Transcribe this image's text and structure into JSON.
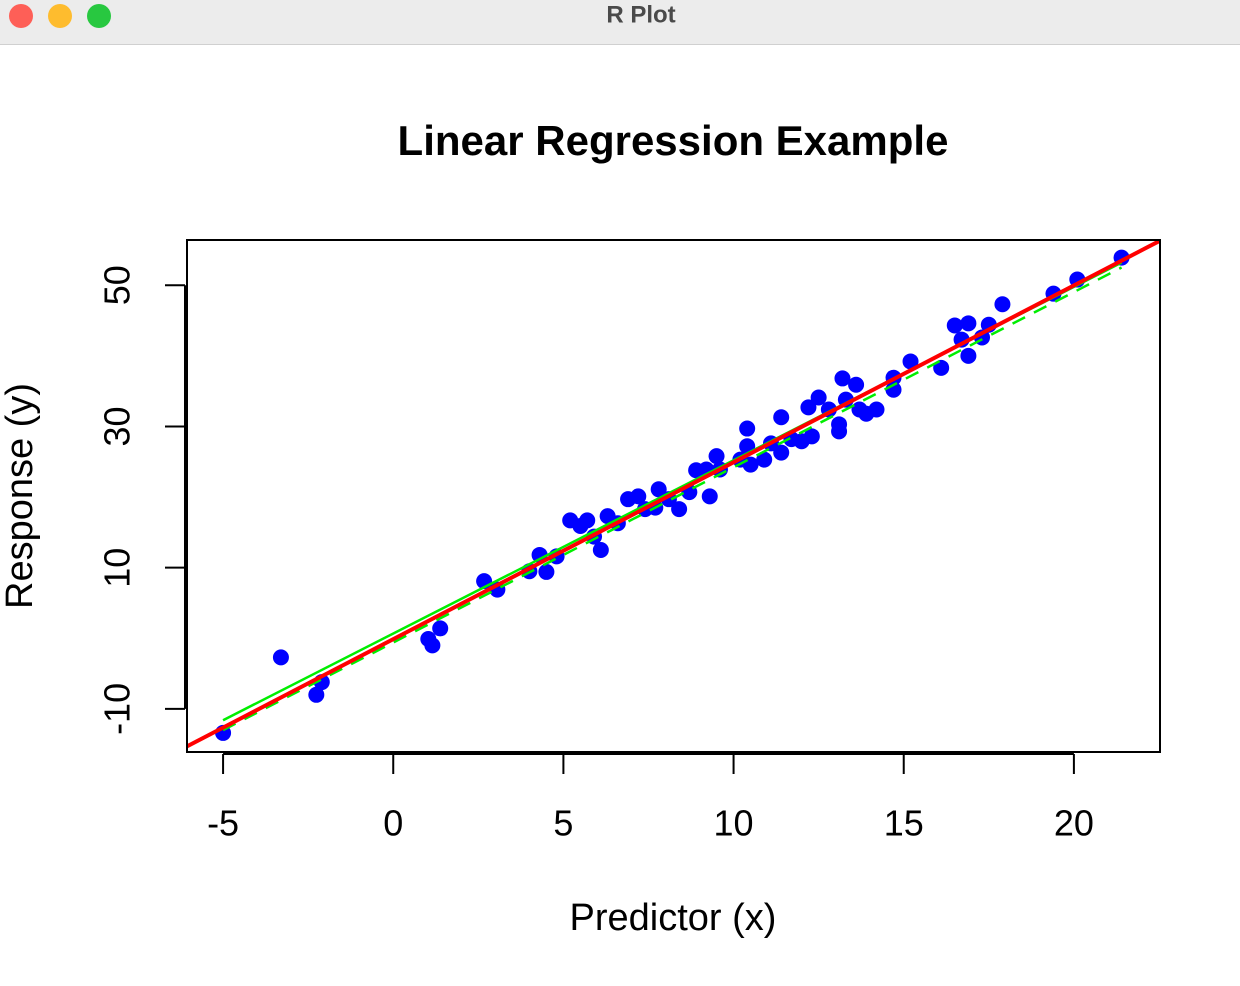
{
  "window": {
    "title": "R Plot"
  },
  "chart_data": {
    "type": "scatter",
    "title": "Linear Regression Example",
    "x_label": "Predictor (x)",
    "y_label": "Response (y)",
    "color": "#0000ff",
    "x": [
      -5.0,
      -3.3,
      -2.26,
      -2.1,
      1.03,
      1.15,
      1.38,
      2.67,
      3.06,
      4.0,
      4.3,
      4.5,
      4.8,
      5.2,
      5.5,
      5.7,
      5.9,
      6.1,
      6.3,
      6.6,
      6.9,
      7.2,
      7.4,
      7.7,
      7.8,
      8.1,
      8.4,
      8.7,
      8.9,
      9.2,
      9.3,
      9.5,
      9.6,
      10.2,
      10.4,
      10.4,
      10.5,
      10.9,
      11.1,
      11.4,
      11.4,
      11.7,
      12.0,
      12.3,
      12.2,
      12.5,
      12.8,
      13.1,
      13.1,
      13.2,
      13.3,
      13.6,
      13.7,
      13.9,
      14.2,
      14.7,
      14.7,
      15.2,
      16.1,
      16.5,
      16.7,
      16.9,
      16.9,
      17.3,
      17.5,
      17.9,
      19.4,
      20.1,
      21.4
    ],
    "values": [
      -13.4,
      -2.7,
      -8.0,
      -6.2,
      -0.1,
      -1.0,
      1.4,
      8.1,
      6.9,
      9.5,
      11.8,
      9.4,
      11.6,
      16.7,
      15.9,
      16.7,
      14.4,
      12.5,
      17.3,
      16.3,
      19.7,
      20.1,
      18.3,
      18.5,
      21.1,
      19.7,
      18.3,
      20.7,
      23.8,
      23.9,
      20.1,
      25.8,
      23.9,
      25.3,
      29.7,
      27.2,
      24.6,
      25.3,
      27.6,
      26.3,
      31.3,
      28.2,
      27.9,
      28.6,
      32.7,
      34.1,
      32.4,
      30.3,
      29.3,
      36.8,
      33.8,
      35.9,
      32.4,
      31.8,
      32.4,
      35.2,
      36.9,
      39.2,
      38.3,
      44.3,
      42.3,
      44.6,
      40.0,
      42.6,
      44.4,
      47.3,
      48.8,
      50.8,
      53.9
    ],
    "lines": [
      {
        "color": "#00ee00",
        "dash": false,
        "x": [
          -5.0,
          21.4
        ],
        "values": [
          -11.6,
          53.2
        ]
      },
      {
        "color": "#00ee00",
        "dash": true,
        "x": [
          -5.0,
          21.4
        ],
        "values": [
          -13.0,
          52.5
        ]
      },
      {
        "color": "#ff0000",
        "dash": false,
        "x": [
          -6.06,
          22.53
        ],
        "values": [
          -15.3,
          56.3
        ]
      }
    ],
    "xlim": [
      -6.06,
      22.53
    ],
    "ylim": [
      -16.1,
      56.4
    ],
    "xticks": [
      -5,
      0,
      5,
      10,
      15,
      20
    ],
    "yticks": [
      -10,
      10,
      30,
      50
    ]
  }
}
